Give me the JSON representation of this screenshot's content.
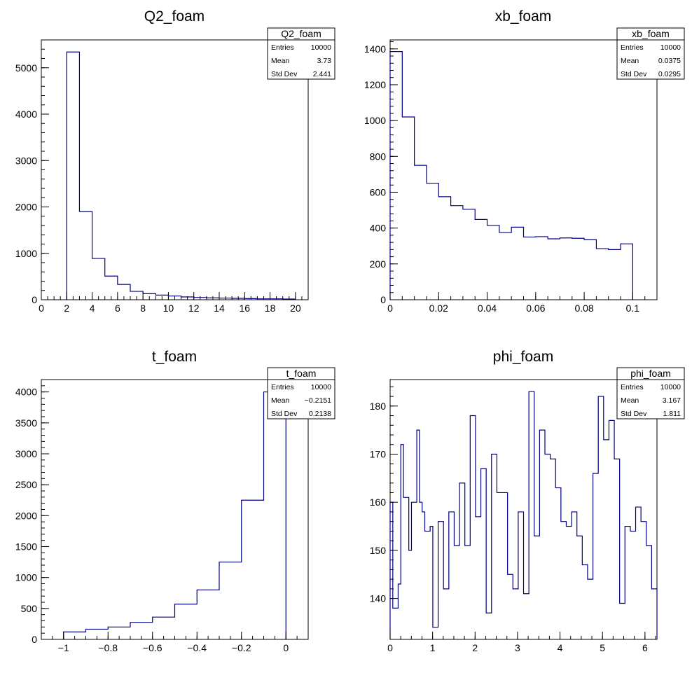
{
  "chart_data": [
    {
      "type": "histogram",
      "title": "Q2_foam",
      "xlim": [
        0,
        21
      ],
      "ylim": [
        0,
        5600
      ],
      "x_ticks": [
        0,
        2,
        4,
        6,
        8,
        10,
        12,
        14,
        16,
        18,
        20
      ],
      "x_tick_labels": [
        "0",
        "2",
        "4",
        "6",
        "8",
        "10",
        "12",
        "14",
        "16",
        "18",
        "20"
      ],
      "y_ticks": [
        0,
        1000,
        2000,
        3000,
        4000,
        5000
      ],
      "y_tick_labels": [
        "0",
        "1000",
        "2000",
        "3000",
        "4000",
        "5000"
      ],
      "bin_edges": [
        2,
        3,
        4,
        5,
        6,
        7,
        8,
        9,
        10,
        11,
        12,
        13,
        14,
        15,
        16,
        17,
        18,
        19,
        20
      ],
      "counts": [
        5340,
        1900,
        890,
        510,
        330,
        180,
        130,
        100,
        80,
        60,
        50,
        40,
        35,
        30,
        25,
        20,
        20,
        15
      ],
      "stats": {
        "name": "Q2_foam",
        "rows": [
          [
            "Entries",
            "10000"
          ],
          [
            "Mean",
            "3.73"
          ],
          [
            "Std Dev",
            "2.441"
          ]
        ]
      },
      "line_color": "#000080"
    },
    {
      "type": "histogram",
      "title": "xb_foam",
      "xlim": [
        0,
        0.11
      ],
      "ylim": [
        0,
        1450
      ],
      "x_ticks": [
        0,
        0.02,
        0.04,
        0.06,
        0.08,
        0.1
      ],
      "x_tick_labels": [
        "0",
        "0.02",
        "0.04",
        "0.06",
        "0.08",
        "0.1"
      ],
      "y_ticks": [
        0,
        200,
        400,
        600,
        800,
        1000,
        1200,
        1400
      ],
      "y_tick_labels": [
        "0",
        "200",
        "400",
        "600",
        "800",
        "1000",
        "1200",
        "1400"
      ],
      "bin_edges": [
        0,
        0.005,
        0.01,
        0.015,
        0.02,
        0.025,
        0.03,
        0.035,
        0.04,
        0.045,
        0.05,
        0.055,
        0.06,
        0.065,
        0.07,
        0.075,
        0.08,
        0.085,
        0.09,
        0.095,
        0.1
      ],
      "counts": [
        1385,
        1020,
        750,
        650,
        575,
        525,
        505,
        448,
        415,
        375,
        405,
        350,
        352,
        340,
        345,
        343,
        335,
        285,
        280,
        312
      ],
      "stats": {
        "name": "xb_foam",
        "rows": [
          [
            "Entries",
            "10000"
          ],
          [
            "Mean",
            "0.0375"
          ],
          [
            "Std Dev",
            "0.0295"
          ]
        ]
      },
      "line_color": "#000080"
    },
    {
      "type": "histogram",
      "title": "t_foam",
      "xlim": [
        -1.1,
        0.1
      ],
      "ylim": [
        0,
        4200
      ],
      "x_ticks": [
        -1,
        -0.8,
        -0.6,
        -0.4,
        -0.2,
        0
      ],
      "x_tick_labels": [
        "−1",
        "−0.8",
        "−0.6",
        "−0.4",
        "−0.2",
        "0"
      ],
      "y_ticks": [
        0,
        500,
        1000,
        1500,
        2000,
        2500,
        3000,
        3500,
        4000
      ],
      "y_tick_labels": [
        "0",
        "500",
        "1000",
        "1500",
        "2000",
        "2500",
        "3000",
        "3500",
        "4000"
      ],
      "bin_edges": [
        -1,
        -0.9,
        -0.8,
        -0.7,
        -0.6,
        -0.5,
        -0.4,
        -0.3,
        -0.2,
        -0.1,
        0
      ],
      "counts": [
        120,
        165,
        200,
        275,
        360,
        570,
        800,
        1250,
        2250,
        4000
      ],
      "stats": {
        "name": "t_foam",
        "rows": [
          [
            "Entries",
            "10000"
          ],
          [
            "Mean",
            "−0.2151"
          ],
          [
            "Std Dev",
            "0.2138"
          ]
        ]
      },
      "line_color": "#000080"
    },
    {
      "type": "histogram",
      "title": "phi_foam",
      "xlim": [
        0,
        6.283
      ],
      "ylim": [
        131.5,
        185.5
      ],
      "x_ticks": [
        0,
        1,
        2,
        3,
        4,
        5,
        6
      ],
      "x_tick_labels": [
        "0",
        "1",
        "2",
        "3",
        "4",
        "5",
        "6"
      ],
      "y_ticks": [
        140,
        150,
        160,
        170,
        180
      ],
      "y_tick_labels": [
        "140",
        "150",
        "160",
        "170",
        "180"
      ],
      "bin_edges": [
        0,
        0.0628,
        0.1257,
        0.1885,
        0.2513,
        0.3142,
        0.377,
        0.4398,
        0.5027,
        0.5655,
        0.6283,
        0.6912,
        0.754,
        0.8168,
        0.8796,
        0.9425,
        1.0053,
        1.0681,
        1.131,
        1.1938,
        1.2566,
        1.3195,
        1.3823,
        1.4451,
        1.508,
        1.5708,
        1.6336,
        1.6965,
        1.7593,
        1.8221,
        1.885,
        1.9478,
        2.0106,
        2.0735,
        2.1363,
        2.1991,
        2.2619,
        2.3248,
        2.3876,
        2.4504,
        2.5133,
        2.5761,
        2.6389,
        2.7018,
        2.7646,
        2.8274,
        2.8903,
        2.9531,
        3.0159,
        3.0788,
        3.1416,
        3.2044,
        3.2673,
        3.3301,
        3.3929,
        3.4558,
        3.5186,
        3.5814,
        3.6442,
        3.7071,
        3.7699,
        3.8327,
        3.8956,
        3.9584,
        4.0212,
        4.0841,
        4.1469,
        4.2097,
        4.2726,
        4.3354,
        4.3982,
        4.4611,
        4.5239,
        4.5867,
        4.6496,
        4.7124,
        4.7752,
        4.8381,
        4.9009,
        4.9637,
        5.0265,
        5.0894,
        5.1522,
        5.215,
        5.2779,
        5.3407,
        5.4035,
        5.4664,
        5.5292,
        5.592,
        5.6549,
        5.7177,
        5.7805,
        5.8434,
        5.9062,
        5.969,
        6.0319,
        6.0947,
        6.1575,
        6.2204,
        6.2832
      ],
      "counts": [
        160,
        138,
        138,
        143,
        172,
        161,
        161,
        150,
        160,
        160,
        175,
        160,
        158,
        154,
        154,
        155,
        134,
        134,
        156,
        156,
        142,
        142,
        158,
        158,
        151,
        151,
        164,
        164,
        151,
        151,
        178,
        178,
        157,
        157,
        167,
        167,
        137,
        137,
        170,
        170,
        162,
        162,
        162,
        162,
        145,
        145,
        142,
        142,
        158,
        158,
        141,
        141,
        183,
        183,
        153,
        153,
        175,
        175,
        170,
        170,
        169,
        169,
        163,
        163,
        156,
        156,
        155,
        155,
        158,
        158,
        153,
        153,
        147,
        147,
        144,
        144,
        166,
        166,
        182,
        182,
        173,
        173,
        177,
        177,
        169,
        169,
        139,
        139,
        155,
        155,
        154,
        154,
        159,
        159,
        156,
        156,
        151,
        151,
        142,
        142
      ],
      "stats": {
        "name": "phi_foam",
        "rows": [
          [
            "Entries",
            "10000"
          ],
          [
            "Mean",
            "3.167"
          ],
          [
            "Std Dev",
            "1.811"
          ]
        ]
      },
      "line_color": "#000080"
    }
  ]
}
